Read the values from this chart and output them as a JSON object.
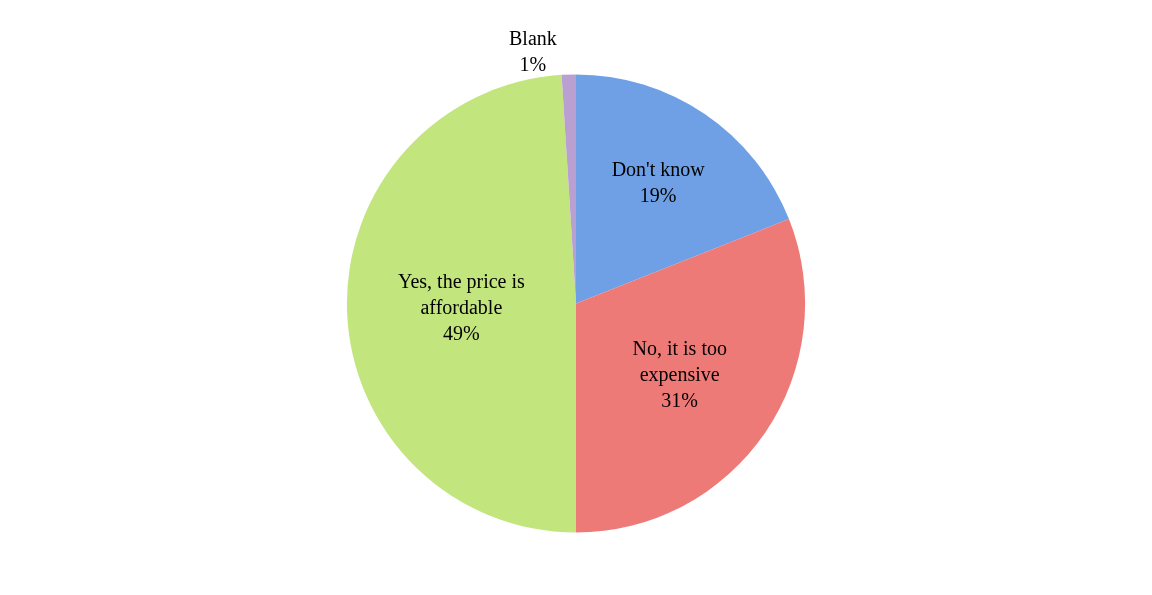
{
  "chart_data": {
    "type": "pie",
    "categories": [
      "Don't know",
      "No, it is too expensive",
      "Yes, the price is affordable",
      "Blank"
    ],
    "values": [
      19,
      31,
      49,
      1
    ],
    "value_labels": [
      "19%",
      "31%",
      "49%",
      "1%"
    ],
    "colors": [
      "#6fa0e6",
      "#ee7a78",
      "#c2e57e",
      "#b9a0d0"
    ],
    "legend": false
  }
}
